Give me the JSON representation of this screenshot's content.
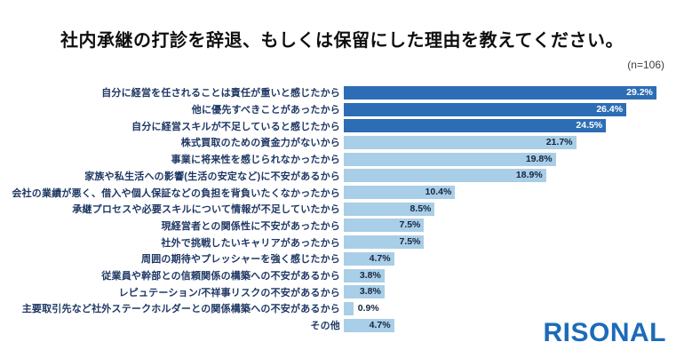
{
  "chart_data": {
    "type": "bar",
    "orientation": "horizontal",
    "title": "社内承継の打診を辞退、もしくは保留にした理由を教えてください。",
    "sample_size_label": "(n=106)",
    "categories": [
      "自分に経営を任されることは責任が重いと感じたから",
      "他に優先すべきことがあったから",
      "自分に経営スキルが不足していると感じたから",
      "株式買取のための資金力がないから",
      "事業に将来性を感じられなかったから",
      "家族や私生活への影響(生活の安定など)に不安があるから",
      "会社の業績が悪く、借入や個人保証などの負担を背負いたくなかったから",
      "承継プロセスや必要スキルについて情報が不足していたから",
      "現経営者との関係性に不安があったから",
      "社外で挑戦したいキャリアがあったから",
      "周囲の期待やプレッシャーを強く感じたから",
      "従業員や幹部との信頼関係の構築への不安があるから",
      "レピュテーション/不祥事リスクの不安があるから",
      "主要取引先など社外ステークホルダーとの関係構築への不安があるから",
      "その他"
    ],
    "values": [
      29.2,
      26.4,
      24.5,
      21.7,
      19.8,
      18.9,
      10.4,
      8.5,
      7.5,
      7.5,
      4.7,
      3.8,
      3.8,
      0.9,
      4.7
    ],
    "value_suffix": "%",
    "xlim": [
      0,
      30
    ],
    "grid": false,
    "legend": false,
    "highlight_count": 3,
    "colors": {
      "highlight_bar": "#2D6DB5",
      "normal_bar": "#A9CEE7",
      "value_on_highlight": "#FFFFFF",
      "value_on_normal": "#17243E",
      "category_label": "#1F3864"
    }
  },
  "logo": {
    "text": "RISONAL",
    "color": "#1C6BB8"
  }
}
